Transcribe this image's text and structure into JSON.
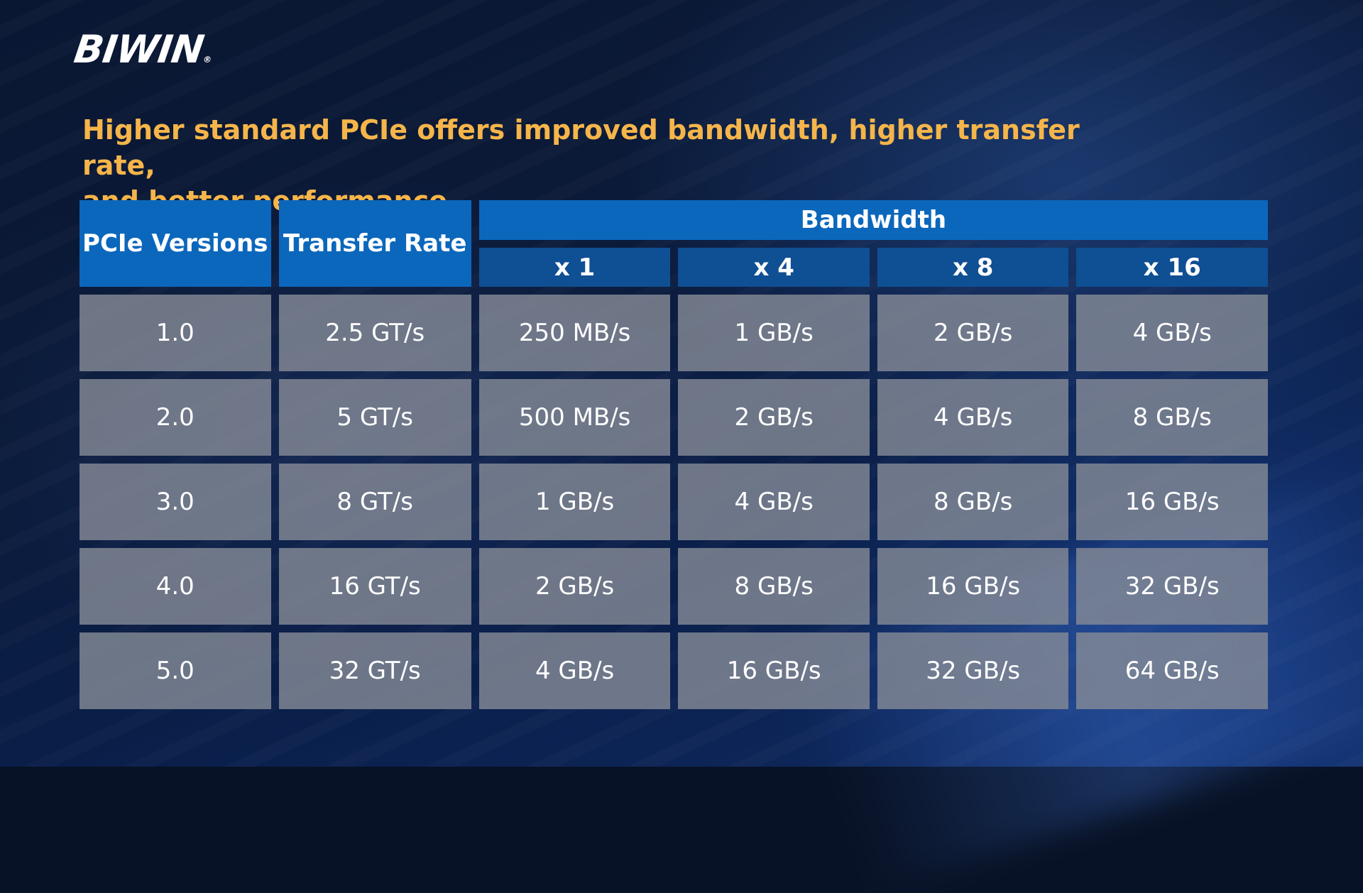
{
  "brand": {
    "name": "BIWIN",
    "registered_mark": "®"
  },
  "headline": {
    "line1": "Higher standard PCIe offers improved bandwidth, higher transfer rate,",
    "line2": "and better performance."
  },
  "colors": {
    "headline": "#f5b54a",
    "header_primary": "#0b67bc",
    "header_secondary": "#0f4f93",
    "cell": "#848a96"
  },
  "table": {
    "headers": {
      "version": "PCIe Versions",
      "transfer_rate": "Transfer Rate",
      "bandwidth": "Bandwidth",
      "lanes": [
        "x 1",
        "x 4",
        "x 8",
        "x 16"
      ]
    },
    "rows": [
      [
        "1.0",
        "2.5 GT/s",
        "250 MB/s",
        "1 GB/s",
        "2 GB/s",
        "4 GB/s"
      ],
      [
        "2.0",
        "5 GT/s",
        "500 MB/s",
        "2 GB/s",
        "4 GB/s",
        "8 GB/s"
      ],
      [
        "3.0",
        "8 GT/s",
        "1 GB/s",
        "4 GB/s",
        "8 GB/s",
        "16 GB/s"
      ],
      [
        "4.0",
        "16 GT/s",
        "2 GB/s",
        "8 GB/s",
        "16 GB/s",
        "32 GB/s"
      ],
      [
        "5.0",
        "32 GT/s",
        "4 GB/s",
        "16 GB/s",
        "32 GB/s",
        "64 GB/s"
      ]
    ]
  }
}
